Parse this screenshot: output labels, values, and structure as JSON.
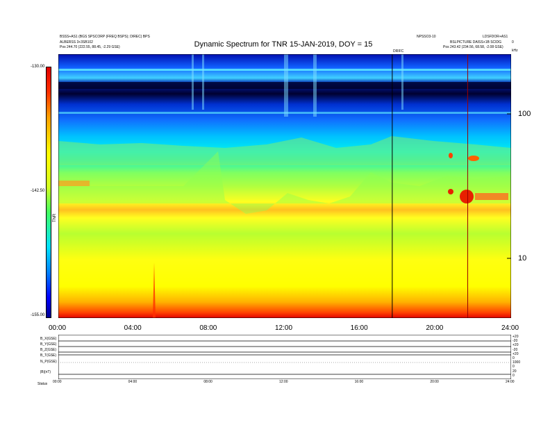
{
  "header": {
    "left_line1": "BSSS+AS1 (BGS SPSCORP (FREQ BSPS); DIREC) BPS",
    "left_line2": "ALBERSS 3+3SB102",
    "left_line3": "Pos   244.70 (222.55, 88.45, -2.29 GSE)",
    "right_top": "LDSFDOR+AS1",
    "right_mid": "NPSSO3-10",
    "right_line2": "BSLPICTURE DAISS+1B SCIDG",
    "right_line3": "Pos   243.42 (234.56, 68.58, -2.08 GSE)",
    "right_corner": "0",
    "right_corner2": "kHz",
    "marker_label": "DRIFC"
  },
  "chart_data": {
    "type": "heatmap",
    "title": "Dynamic Spectrum for TNR 15-JAN-2019, DOY = 15",
    "x_tick_labels": [
      "00:00",
      "04:00",
      "08:00",
      "12:00",
      "16:00",
      "20:00",
      "24:00"
    ],
    "x_range_hours": [
      0,
      24
    ],
    "y_scale": "log",
    "y_tick_labels": [
      "100",
      "10"
    ],
    "y_tick_values_khz": [
      100,
      10
    ],
    "colorbar": {
      "tick_labels": [
        "-130.00",
        "-142.50",
        "-155.00"
      ],
      "range": [
        -155,
        -130
      ],
      "units_label": "TNR",
      "colors": [
        "#000090",
        "#0000ff",
        "#0080ff",
        "#00e0ff",
        "#40ff60",
        "#d0ff20",
        "#ffff00",
        "#ffa000",
        "#ff3000",
        "#e00000"
      ]
    },
    "vertical_markers_hours": [
      17.7,
      21.7
    ],
    "intensity_bands_khz": [
      {
        "from": 250,
        "to": 120,
        "level": "dark-blue"
      },
      {
        "from": 120,
        "to": 60,
        "level": "cyan"
      },
      {
        "from": 60,
        "to": 30,
        "level": "green-yellow"
      },
      {
        "from": 30,
        "to": 4,
        "level": "yellow-red"
      }
    ]
  },
  "lower_panel": {
    "row_labels": [
      "B_X(GSE)",
      "B_Y(GSE)",
      "B_Z(GSE)",
      "B_T(GSE)",
      "N_P(GSE)",
      "|B|(nT)"
    ],
    "right_labels": [
      "+20",
      "-20",
      "+20",
      "-20",
      "+20",
      "0",
      "1000",
      "0",
      "20",
      "0"
    ],
    "x_tick_labels": [
      "00:00",
      "04:00",
      "08:00",
      "12:00",
      "16:00",
      "20:00",
      "24:00"
    ],
    "footer_label": "Status"
  }
}
